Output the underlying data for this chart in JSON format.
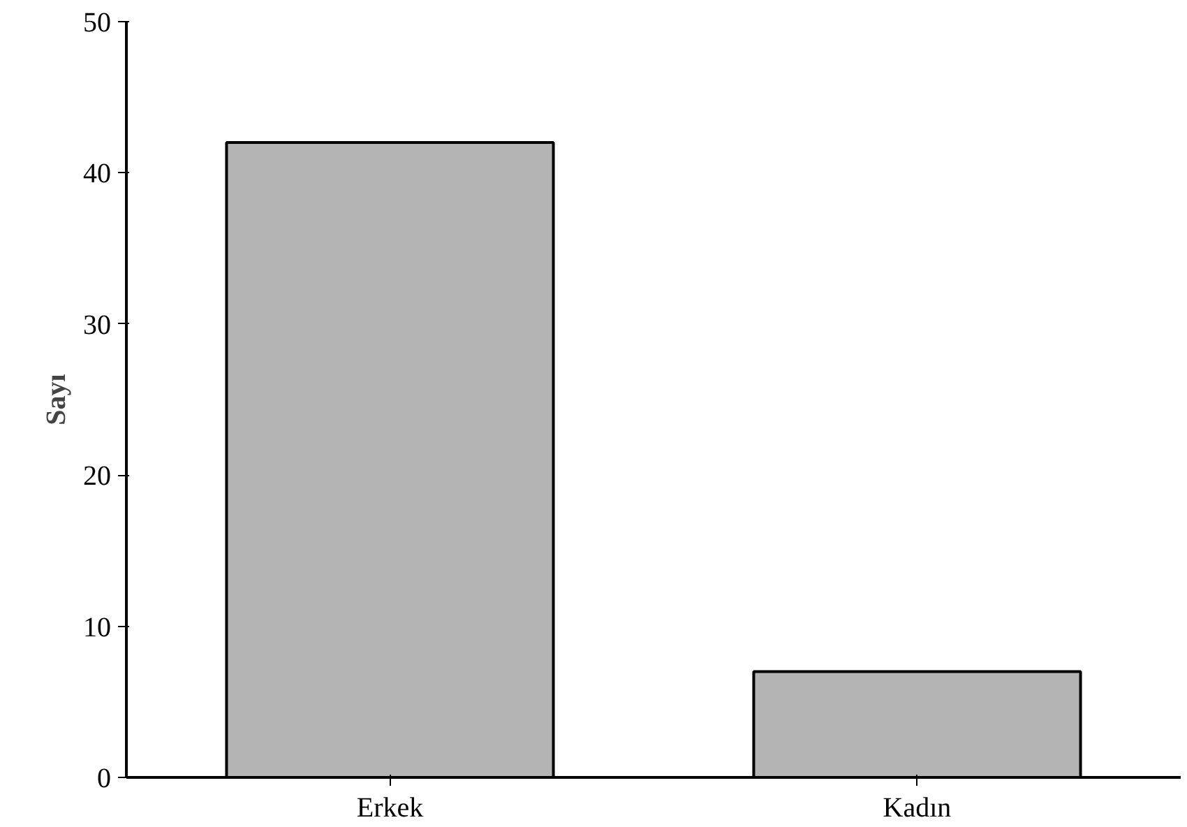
{
  "chart_data": {
    "type": "bar",
    "ylabel": "Sayı",
    "categories": [
      "Erkek",
      "Kadın"
    ],
    "values": [
      42,
      7
    ],
    "color": "#b4b4b4",
    "ylim": [
      0,
      50
    ],
    "yticks": [
      0,
      10,
      20,
      30,
      40,
      50
    ],
    "grid": false
  }
}
